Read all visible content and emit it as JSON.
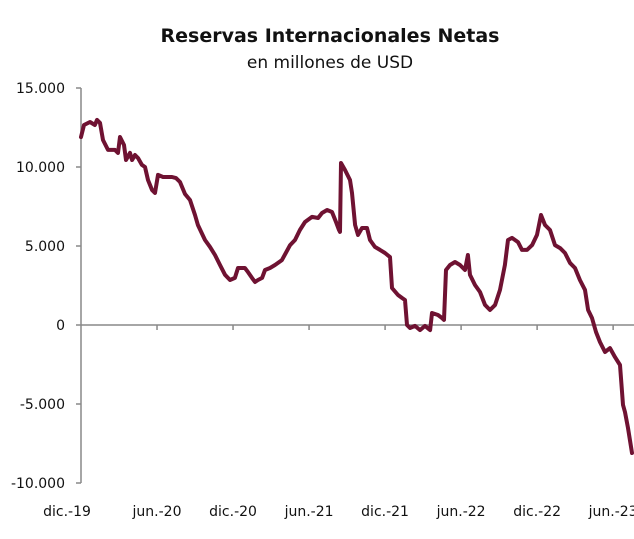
{
  "chart_data": {
    "type": "line",
    "title": "Reservas Internacionales Netas",
    "subtitle": "en millones de USD",
    "xlabel": "",
    "ylabel": "",
    "ylim": [
      -10000,
      15000
    ],
    "xlim_months_since_dec19": [
      0,
      43.5
    ],
    "yticks": [
      {
        "value": 15000,
        "label": "15.000"
      },
      {
        "value": 10000,
        "label": "10.000"
      },
      {
        "value": 5000,
        "label": "5.000"
      },
      {
        "value": 0,
        "label": "0"
      },
      {
        "value": -5000,
        "label": "-5.000"
      },
      {
        "value": -10000,
        "label": "-10.000"
      }
    ],
    "xticks": [
      {
        "month": 0,
        "label": "dic.-19"
      },
      {
        "month": 6,
        "label": "jun.-20"
      },
      {
        "month": 12,
        "label": "dic.-20"
      },
      {
        "month": 18,
        "label": "jun.-21"
      },
      {
        "month": 24,
        "label": "dic.-21"
      },
      {
        "month": 30,
        "label": "jun.-22"
      },
      {
        "month": 36,
        "label": "dic.-22"
      },
      {
        "month": 42,
        "label": "jun.-23"
      }
    ],
    "grid": false,
    "line_color": "#6f1232",
    "series": [
      {
        "name": "RIN",
        "x_months_since_dec19": [
          0,
          0.24,
          0.71,
          1.1,
          1.26,
          1.5,
          1.74,
          2.13,
          2.68,
          2.92,
          3.08,
          3.39,
          3.55,
          3.87,
          4.03,
          4.26,
          4.5,
          4.81,
          5.05,
          5.29,
          5.6,
          5.84,
          6.08,
          6.47,
          7.18,
          7.5,
          7.81,
          8.21,
          8.6,
          9.0,
          9.23,
          9.79,
          10.18,
          10.58,
          10.97,
          11.37,
          11.76,
          12.15,
          12.39,
          12.94,
          13.18,
          13.5,
          13.73,
          13.97,
          14.29,
          14.52,
          14.92,
          15.31,
          15.86,
          16.5,
          16.89,
          17.28,
          17.68,
          18.23,
          18.71,
          19.02,
          19.42,
          19.81,
          20.13,
          20.36,
          20.44,
          20.52,
          20.84,
          21.23,
          21.39,
          21.63,
          21.86,
          22.18,
          22.57,
          22.81,
          23.2,
          23.6,
          23.99,
          24.39,
          24.55,
          25.02,
          25.34,
          25.57,
          25.73,
          25.97,
          26.36,
          26.76,
          27.15,
          27.55,
          27.7,
          28.18,
          28.49,
          28.65,
          28.81,
          29.12,
          29.52,
          29.91,
          30.31,
          30.54,
          30.7,
          31.1,
          31.49,
          31.89,
          32.28,
          32.68,
          33.07,
          33.46,
          33.7,
          34.02,
          34.49,
          34.81,
          35.2,
          35.6,
          35.99,
          36.31,
          36.62,
          37.02,
          37.41,
          37.81,
          38.2,
          38.6,
          38.99,
          39.38,
          39.78,
          40.02,
          40.33,
          40.65,
          40.96,
          41.36,
          41.75,
          42.15,
          42.54,
          42.78,
          42.94,
          43.17,
          43.49
        ],
        "values": [
          11900,
          12660,
          12850,
          12660,
          12980,
          12790,
          11710,
          11080,
          11080,
          10890,
          11900,
          11390,
          10440,
          10890,
          10440,
          10760,
          10570,
          10130,
          10000,
          9180,
          8550,
          8360,
          9500,
          9370,
          9370,
          9300,
          9050,
          8290,
          7910,
          6960,
          6330,
          5380,
          4940,
          4430,
          3800,
          3170,
          2850,
          2980,
          3610,
          3610,
          3350,
          2980,
          2720,
          2850,
          2980,
          3480,
          3610,
          3800,
          4110,
          5060,
          5380,
          6010,
          6520,
          6840,
          6770,
          7090,
          7280,
          7150,
          6520,
          6010,
          5890,
          10250,
          9810,
          9180,
          8360,
          6330,
          5700,
          6140,
          6140,
          5380,
          4940,
          4750,
          4560,
          4300,
          2340,
          1900,
          1710,
          1580,
          0,
          -190,
          -60,
          -320,
          -60,
          -320,
          760,
          630,
          440,
          320,
          3480,
          3800,
          3990,
          3800,
          3480,
          4430,
          3170,
          2530,
          2090,
          1270,
          950,
          1270,
          2220,
          3800,
          5380,
          5510,
          5250,
          4750,
          4750,
          5060,
          5700,
          6960,
          6330,
          6010,
          5060,
          4870,
          4560,
          3920,
          3610,
          2850,
          2220,
          950,
          440,
          -440,
          -1080,
          -1710,
          -1460,
          -2030,
          -2530,
          -5060,
          -5510,
          -6520,
          -8100
        ]
      }
    ]
  }
}
